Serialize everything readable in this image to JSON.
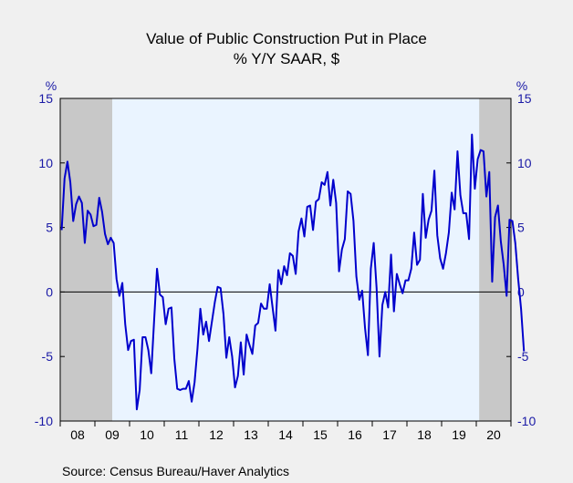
{
  "chart_data": {
    "type": "line",
    "title": "Value of Public Construction Put in Place",
    "subtitle": "% Y/Y   SAAR, $",
    "ylabel_left": "%",
    "ylabel_right": "%",
    "ylim": [
      -10,
      15
    ],
    "yticks": [
      15,
      10,
      5,
      0,
      -5,
      -10
    ],
    "x_start": "2008-01",
    "x_end": "2020-12",
    "xtick_labels": [
      "08",
      "09",
      "10",
      "11",
      "12",
      "13",
      "14",
      "15",
      "16",
      "17",
      "18",
      "19",
      "20"
    ],
    "recession_shading": [
      [
        "2008-01",
        "2009-06"
      ],
      [
        "2020-02",
        "2020-12"
      ]
    ],
    "colors": {
      "line": "#0000cc",
      "recession": "#c8c8c8",
      "plot_bg": "#eaf4ff",
      "axis_text": "#1a1aa6",
      "zero_line": "#000000"
    },
    "series": [
      {
        "values": [
          4.8,
          8.8,
          10.1,
          8.5,
          5.5,
          6.8,
          7.4,
          6.9,
          3.8,
          6.3,
          6.0,
          5.1,
          5.2,
          7.3,
          6.2,
          4.5,
          3.7,
          4.2,
          3.8,
          1.0,
          -0.3,
          0.7,
          -2.5,
          -4.5,
          -3.8,
          -3.7,
          -9.1,
          -7.6,
          -3.5,
          -3.5,
          -4.5,
          -6.3,
          -2.2,
          1.8,
          -0.2,
          -0.4,
          -2.5,
          -1.3,
          -1.2,
          -5.2,
          -7.5,
          -7.6,
          -7.5,
          -7.5,
          -6.9,
          -8.5,
          -7.0,
          -4.4,
          -1.3,
          -3.3,
          -2.3,
          -3.8,
          -2.3,
          -0.8,
          0.4,
          0.3,
          -1.7,
          -5.1,
          -3.5,
          -5.0,
          -7.4,
          -6.5,
          -3.9,
          -6.4,
          -3.3,
          -4.1,
          -4.8,
          -2.6,
          -2.4,
          -0.9,
          -1.3,
          -1.3,
          0.6,
          -1.2,
          -3.0,
          1.7,
          0.6,
          2.0,
          1.3,
          3.0,
          2.8,
          1.4,
          4.7,
          5.7,
          4.3,
          6.6,
          6.7,
          4.8,
          7.0,
          7.2,
          8.5,
          8.3,
          9.3,
          6.7,
          8.7,
          6.9,
          1.6,
          3.3,
          4.1,
          7.8,
          7.6,
          5.5,
          1.2,
          -0.6,
          0.1,
          -2.8,
          -4.9,
          1.8,
          3.8,
          0.3,
          -5.0,
          -1.0,
          0.0,
          -1.2,
          2.9,
          -1.5,
          1.4,
          0.6,
          -0.1,
          0.9,
          0.9,
          1.8,
          4.6,
          2.1,
          2.5,
          7.6,
          4.2,
          5.6,
          6.3,
          9.4,
          4.4,
          2.6,
          1.8,
          3.0,
          4.6,
          7.7,
          6.4,
          10.9,
          7.5,
          6.1,
          6.1,
          4.1,
          12.2,
          8.0,
          10.3,
          11.0,
          10.9,
          7.4,
          9.3,
          0.8,
          5.8,
          6.7,
          3.9,
          2.1,
          -0.3,
          5.6,
          5.5,
          3.8,
          1.0,
          -1.3,
          -4.6
        ]
      }
    ],
    "source": "Source:   Census Bureau/Haver Analytics"
  }
}
